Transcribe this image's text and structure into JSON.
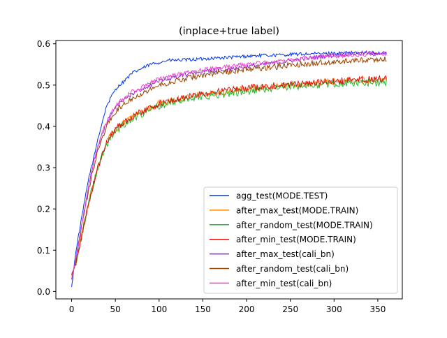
{
  "chart_data": {
    "type": "line",
    "title": "(inplace+true label)",
    "xlabel": "",
    "ylabel": "",
    "xlim": [
      -18,
      378
    ],
    "ylim": [
      -0.018,
      0.608
    ],
    "xticks": [
      0,
      50,
      100,
      150,
      200,
      250,
      300,
      350
    ],
    "yticks": [
      0.0,
      0.1,
      0.2,
      0.3,
      0.4,
      0.5,
      0.6
    ],
    "xtick_labels": [
      "0",
      "50",
      "100",
      "150",
      "200",
      "250",
      "300",
      "350"
    ],
    "ytick_labels": [
      "0.0",
      "0.1",
      "0.2",
      "0.3",
      "0.4",
      "0.5",
      "0.6"
    ],
    "grid": false,
    "legend_position": "lower-right",
    "series": [
      {
        "name": "agg_test(MODE.TEST)",
        "color": "#0033ee",
        "x": [
          0,
          5,
          10,
          15,
          20,
          25,
          30,
          35,
          40,
          45,
          50,
          60,
          70,
          80,
          90,
          100,
          110,
          120,
          140,
          160,
          180,
          200,
          220,
          240,
          260,
          280,
          300,
          320,
          340,
          360
        ],
        "y": [
          0.01,
          0.1,
          0.16,
          0.22,
          0.28,
          0.32,
          0.37,
          0.41,
          0.45,
          0.47,
          0.49,
          0.51,
          0.53,
          0.54,
          0.55,
          0.555,
          0.56,
          0.56,
          0.562,
          0.565,
          0.567,
          0.57,
          0.572,
          0.573,
          0.575,
          0.576,
          0.577,
          0.578,
          0.578,
          0.577
        ],
        "noise": 0.004
      },
      {
        "name": "after_max_test(MODE.TRAIN)",
        "color": "#ff8800",
        "x": [
          0,
          5,
          10,
          15,
          20,
          25,
          30,
          35,
          40,
          45,
          50,
          60,
          70,
          80,
          90,
          100,
          120,
          140,
          160,
          180,
          200,
          220,
          240,
          260,
          280,
          300,
          320,
          340,
          360
        ],
        "y": [
          0.04,
          0.07,
          0.12,
          0.17,
          0.22,
          0.26,
          0.3,
          0.33,
          0.36,
          0.38,
          0.39,
          0.41,
          0.425,
          0.435,
          0.445,
          0.455,
          0.465,
          0.475,
          0.48,
          0.485,
          0.49,
          0.495,
          0.5,
          0.502,
          0.505,
          0.508,
          0.51,
          0.512,
          0.513
        ],
        "noise": 0.008
      },
      {
        "name": "after_random_test(MODE.TRAIN)",
        "color": "#22bb33",
        "x": [
          0,
          5,
          10,
          15,
          20,
          25,
          30,
          35,
          40,
          45,
          50,
          60,
          70,
          80,
          90,
          100,
          120,
          140,
          160,
          180,
          200,
          220,
          240,
          260,
          280,
          300,
          320,
          340,
          360
        ],
        "y": [
          0.04,
          0.07,
          0.12,
          0.17,
          0.22,
          0.26,
          0.3,
          0.33,
          0.355,
          0.375,
          0.39,
          0.405,
          0.42,
          0.43,
          0.44,
          0.45,
          0.46,
          0.47,
          0.475,
          0.48,
          0.485,
          0.49,
          0.495,
          0.498,
          0.5,
          0.503,
          0.505,
          0.506,
          0.507
        ],
        "noise": 0.009
      },
      {
        "name": "after_min_test(MODE.TRAIN)",
        "color": "#dd1111",
        "x": [
          0,
          5,
          10,
          15,
          20,
          25,
          30,
          35,
          40,
          45,
          50,
          60,
          70,
          80,
          90,
          100,
          120,
          140,
          160,
          180,
          200,
          220,
          240,
          260,
          280,
          300,
          320,
          340,
          360
        ],
        "y": [
          0.04,
          0.07,
          0.12,
          0.17,
          0.22,
          0.26,
          0.3,
          0.33,
          0.36,
          0.38,
          0.395,
          0.41,
          0.425,
          0.435,
          0.445,
          0.455,
          0.465,
          0.475,
          0.482,
          0.488,
          0.493,
          0.497,
          0.5,
          0.503,
          0.506,
          0.509,
          0.512,
          0.514,
          0.515
        ],
        "noise": 0.008
      },
      {
        "name": "after_max_test(cali_bn)",
        "color": "#9922dd",
        "x": [
          0,
          5,
          10,
          15,
          20,
          25,
          30,
          35,
          40,
          45,
          50,
          60,
          70,
          80,
          90,
          100,
          120,
          140,
          160,
          180,
          200,
          220,
          240,
          260,
          280,
          300,
          320,
          340,
          360
        ],
        "y": [
          0.03,
          0.08,
          0.14,
          0.2,
          0.26,
          0.31,
          0.35,
          0.38,
          0.41,
          0.43,
          0.445,
          0.465,
          0.48,
          0.49,
          0.5,
          0.51,
          0.52,
          0.53,
          0.535,
          0.54,
          0.545,
          0.55,
          0.556,
          0.562,
          0.568,
          0.572,
          0.576,
          0.578,
          0.577
        ],
        "noise": 0.005
      },
      {
        "name": "after_random_test(cali_bn)",
        "color": "#994400",
        "x": [
          0,
          5,
          10,
          15,
          20,
          25,
          30,
          35,
          40,
          45,
          50,
          60,
          70,
          80,
          90,
          100,
          120,
          140,
          160,
          180,
          200,
          220,
          240,
          260,
          280,
          300,
          320,
          340,
          360
        ],
        "y": [
          0.03,
          0.08,
          0.14,
          0.2,
          0.25,
          0.3,
          0.34,
          0.37,
          0.4,
          0.42,
          0.435,
          0.455,
          0.47,
          0.48,
          0.49,
          0.5,
          0.51,
          0.52,
          0.527,
          0.533,
          0.538,
          0.542,
          0.546,
          0.55,
          0.553,
          0.556,
          0.559,
          0.561,
          0.562
        ],
        "noise": 0.007
      },
      {
        "name": "after_min_test(cali_bn)",
        "color": "#ee44cc",
        "x": [
          0,
          5,
          10,
          15,
          20,
          25,
          30,
          35,
          40,
          45,
          50,
          60,
          70,
          80,
          90,
          100,
          120,
          140,
          160,
          180,
          200,
          220,
          240,
          260,
          280,
          300,
          320,
          340,
          360
        ],
        "y": [
          0.03,
          0.08,
          0.14,
          0.2,
          0.26,
          0.31,
          0.35,
          0.385,
          0.41,
          0.43,
          0.45,
          0.47,
          0.485,
          0.495,
          0.505,
          0.515,
          0.525,
          0.533,
          0.54,
          0.545,
          0.55,
          0.555,
          0.56,
          0.564,
          0.567,
          0.57,
          0.572,
          0.574,
          0.575
        ],
        "noise": 0.005
      }
    ]
  }
}
